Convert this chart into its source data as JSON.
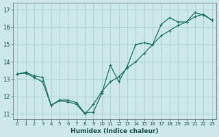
{
  "xlabel": "Humidex (Indice chaleur)",
  "background_color": "#cce8e8",
  "grid_color": "#aacfcf",
  "line_color": "#1a6e60",
  "xlim": [
    -0.5,
    23.5
  ],
  "ylim": [
    10.7,
    17.4
  ],
  "x_ticks": [
    0,
    1,
    2,
    3,
    4,
    5,
    6,
    7,
    8,
    9,
    10,
    11,
    12,
    13,
    14,
    15,
    16,
    17,
    18,
    19,
    20,
    21,
    22,
    23
  ],
  "y_ticks": [
    11,
    12,
    13,
    14,
    15,
    16,
    17
  ],
  "line1_x": [
    0,
    1,
    2,
    3,
    4,
    5,
    6,
    7,
    8,
    9,
    10,
    11,
    12,
    13,
    14,
    15,
    16,
    17,
    18,
    19,
    20,
    21,
    22,
    23
  ],
  "line1_y": [
    13.3,
    13.4,
    13.2,
    13.1,
    11.5,
    11.8,
    11.8,
    11.65,
    11.05,
    11.1,
    12.2,
    13.8,
    12.85,
    13.75,
    15.0,
    15.1,
    15.0,
    16.15,
    16.55,
    16.3,
    16.3,
    16.85,
    16.7,
    16.4
  ],
  "line2_x": [
    0,
    1,
    2,
    3,
    4,
    5,
    6,
    7,
    8,
    9,
    10,
    11,
    12,
    13,
    14,
    15,
    16,
    17,
    18,
    19,
    20,
    21,
    22,
    23
  ],
  "line2_y": [
    13.3,
    13.35,
    13.1,
    12.85,
    11.5,
    11.75,
    11.7,
    11.55,
    11.0,
    11.55,
    12.3,
    12.85,
    13.15,
    13.65,
    14.0,
    14.5,
    15.0,
    15.5,
    15.8,
    16.1,
    16.3,
    16.6,
    16.75,
    16.4
  ],
  "marker_size": 2.5,
  "line_width": 0.9
}
